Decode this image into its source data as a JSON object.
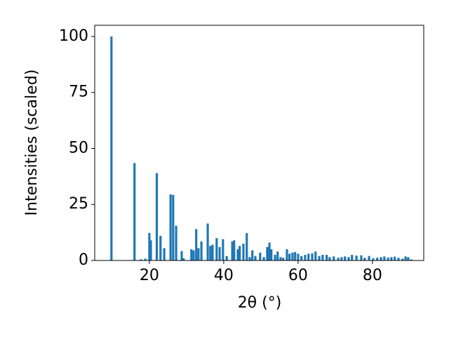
{
  "chart_data": {
    "type": "bar",
    "xlabel": "2θ (°)",
    "ylabel": "Intensities (scaled)",
    "color": "#1f77b4",
    "x": [
      9.8,
      16.0,
      17.7,
      18.9,
      20.0,
      20.4,
      22.0,
      23.0,
      24.0,
      25.7,
      26.4,
      27.2,
      28.7,
      29.2,
      31.3,
      31.9,
      32.6,
      33.2,
      34.0,
      35.7,
      36.4,
      37.0,
      38.1,
      38.9,
      39.8,
      40.8,
      42.3,
      42.8,
      43.8,
      44.3,
      45.3,
      46.2,
      47.0,
      47.7,
      48.5,
      49.8,
      50.8,
      51.7,
      52.3,
      52.8,
      53.8,
      54.5,
      55.3,
      56.0,
      57.0,
      57.7,
      58.5,
      59.2,
      60.0,
      60.9,
      61.9,
      62.8,
      63.8,
      64.7,
      65.7,
      66.6,
      67.7,
      68.5,
      69.6,
      70.8,
      71.7,
      72.6,
      73.6,
      74.5,
      75.7,
      77.0,
      77.9,
      79.1,
      80.2,
      81.3,
      82.3,
      83.2,
      84.2,
      85.1,
      86.0,
      87.0,
      88.1,
      88.9,
      89.6,
      90.4
    ],
    "values": [
      100,
      43.5,
      0.5,
      0.8,
      12.3,
      9,
      39,
      11,
      5.5,
      29.5,
      29.3,
      15.5,
      4.2,
      1,
      5,
      4.5,
      14,
      5.5,
      8.5,
      16.5,
      6.5,
      7,
      10,
      6,
      9.5,
      2,
      8.5,
      9,
      5,
      6.5,
      7.5,
      12.2,
      1.5,
      4.5,
      2,
      3.5,
      1.5,
      6,
      8,
      5,
      2.5,
      4,
      1.5,
      1.2,
      5,
      3,
      3.5,
      3.8,
      3,
      2,
      2.5,
      3,
      3.2,
      4,
      2,
      2.5,
      2.5,
      1.5,
      1.8,
      1.2,
      1.5,
      1.8,
      1.5,
      2.5,
      2.2,
      2.3,
      1.2,
      2,
      1,
      1.2,
      1.5,
      1.8,
      1.3,
      1.5,
      1.7,
      1.2,
      0.8,
      1.8,
      1.5,
      0.5
    ],
    "xlim": [
      5.3,
      93.8
    ],
    "ylim": [
      0,
      105
    ],
    "xticks": [
      20,
      40,
      60,
      80
    ],
    "yticks": [
      0,
      25,
      50,
      75,
      100
    ]
  }
}
